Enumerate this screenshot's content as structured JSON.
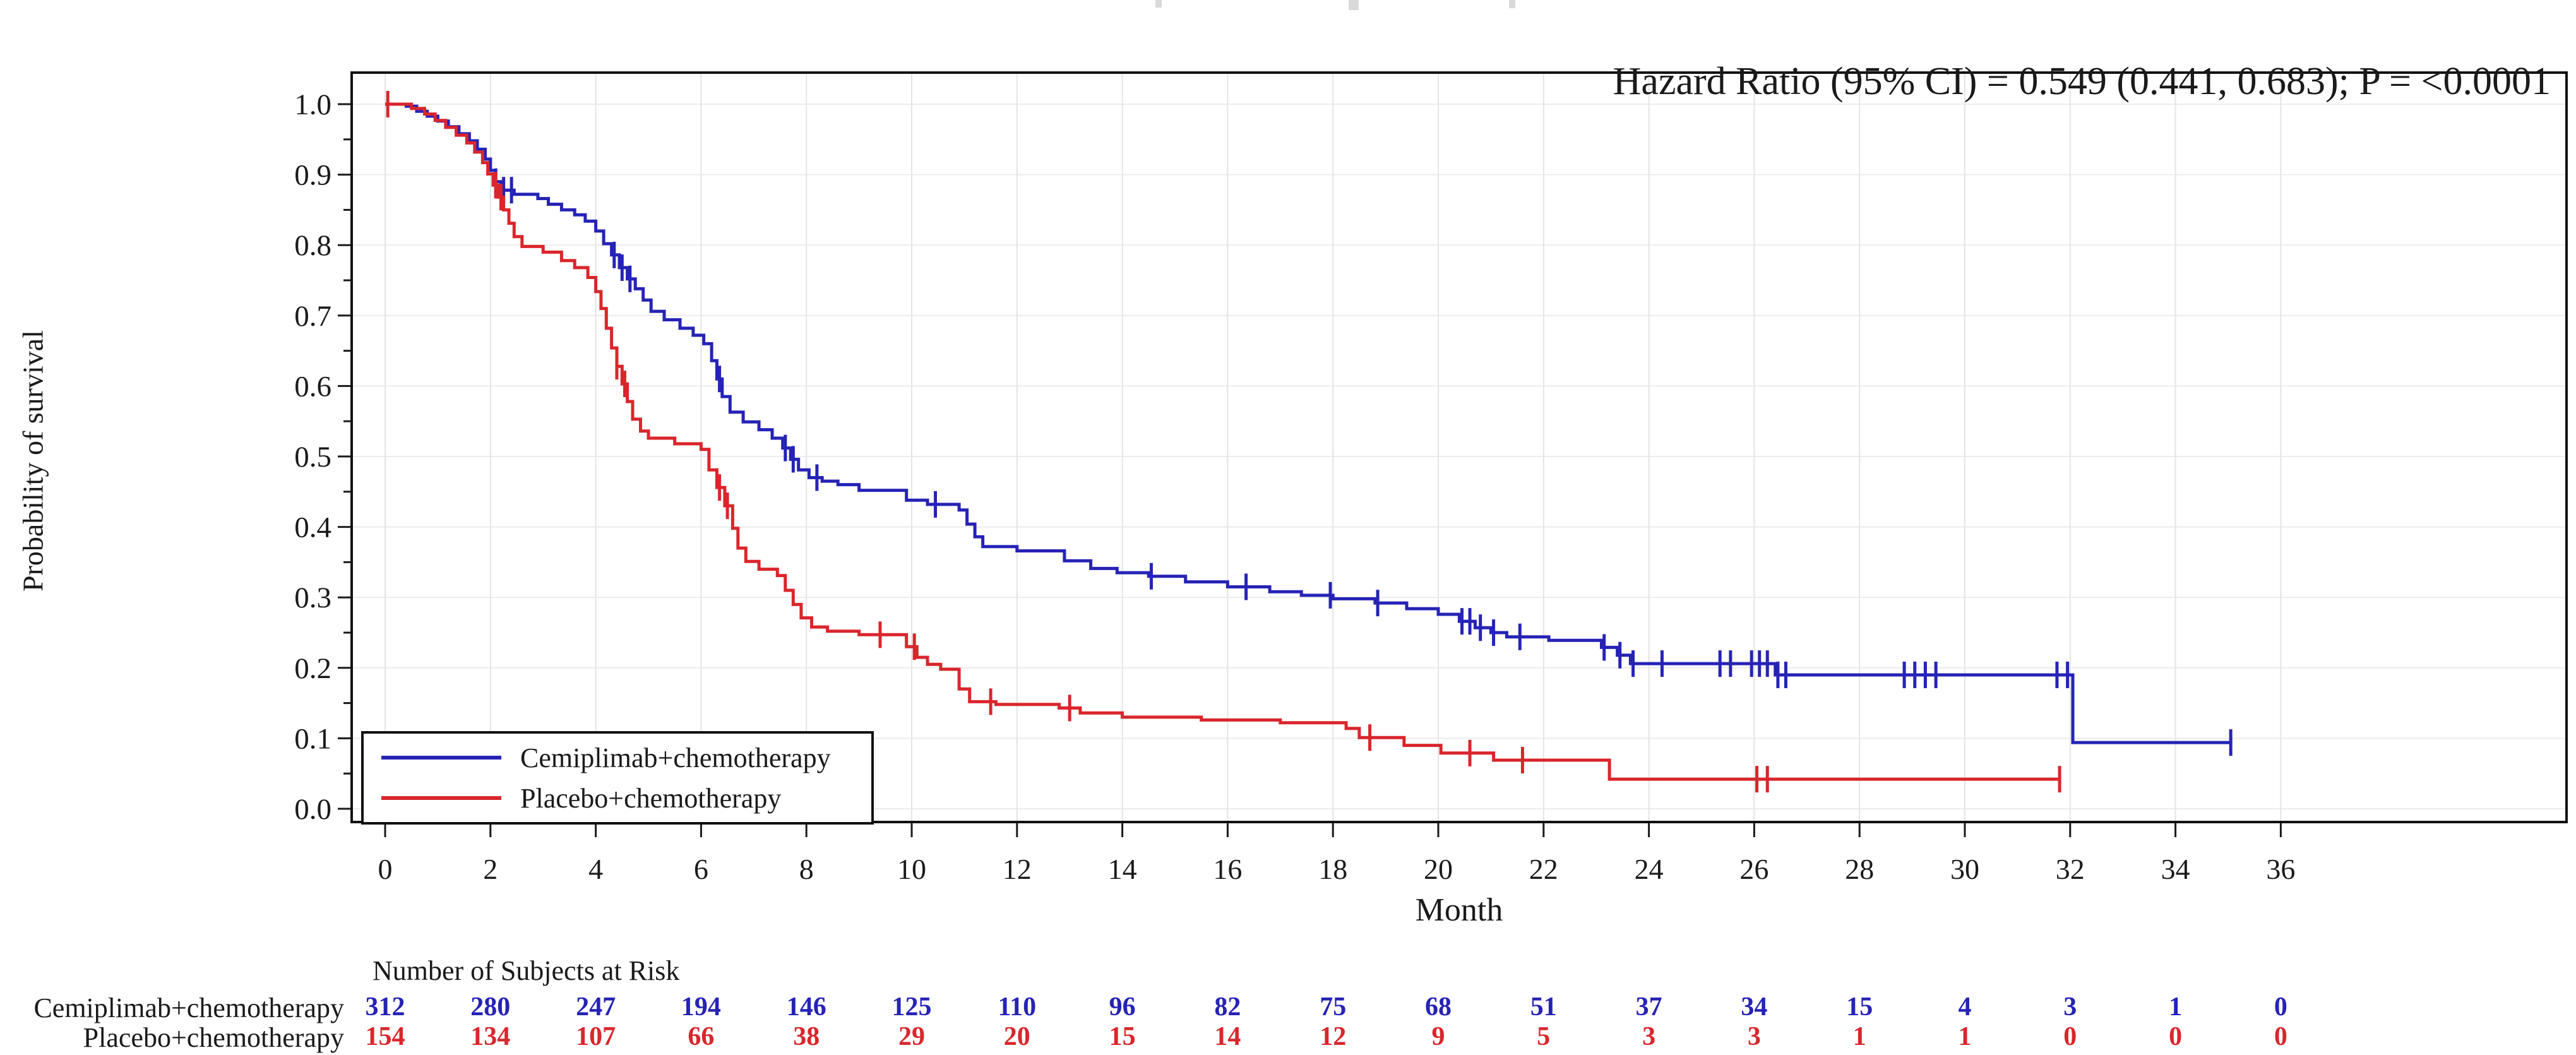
{
  "annotation": {
    "hazard_ratio": "Hazard Ratio (95% CI) = 0.549 (0.441, 0.683); P = <0.0001"
  },
  "axes": {
    "x": {
      "title": "Month",
      "ticks": [
        0,
        2,
        4,
        6,
        8,
        10,
        12,
        14,
        16,
        18,
        20,
        22,
        24,
        26,
        28,
        30,
        32,
        34,
        36
      ],
      "min": 0,
      "max": 36
    },
    "y": {
      "title": "Probability of survival",
      "ticks": [
        "0.0",
        "0.1",
        "0.2",
        "0.3",
        "0.4",
        "0.5",
        "0.6",
        "0.7",
        "0.8",
        "0.9",
        "1.0"
      ],
      "min": 0.0,
      "max": 1.0
    }
  },
  "legend": {
    "items": [
      {
        "label": "Cemiplimab+chemotherapy",
        "color": "#2623b6"
      },
      {
        "label": "Placebo+chemotherapy",
        "color": "#d9262c"
      }
    ]
  },
  "chart_data": {
    "type": "line",
    "subtype": "kaplan-meier-step",
    "title": "",
    "xlabel": "Month",
    "ylabel": "Probability of survival",
    "xlim": [
      0,
      36
    ],
    "ylim": [
      0.0,
      1.0
    ],
    "x_tick_step": 2,
    "y_tick_step": 0.1,
    "grid": true,
    "legend_position": "bottom-left-inside",
    "annotation": "Hazard Ratio (95% CI) = 0.549 (0.441, 0.683); P = <0.0001",
    "series": [
      {
        "name": "Cemiplimab+chemotherapy",
        "color": "#2623b6",
        "end_month": 35.05,
        "steps": [
          [
            0,
            1.0
          ],
          [
            0.4,
            0.997
          ],
          [
            0.6,
            0.99
          ],
          [
            0.8,
            0.983
          ],
          [
            1.0,
            0.976
          ],
          [
            1.2,
            0.968
          ],
          [
            1.4,
            0.958
          ],
          [
            1.6,
            0.948
          ],
          [
            1.75,
            0.936
          ],
          [
            1.9,
            0.922
          ],
          [
            2.0,
            0.906
          ],
          [
            2.1,
            0.89
          ],
          [
            2.2,
            0.878
          ],
          [
            2.45,
            0.872
          ],
          [
            2.9,
            0.866
          ],
          [
            3.1,
            0.858
          ],
          [
            3.35,
            0.85
          ],
          [
            3.6,
            0.843
          ],
          [
            3.8,
            0.834
          ],
          [
            4.0,
            0.82
          ],
          [
            4.15,
            0.802
          ],
          [
            4.3,
            0.786
          ],
          [
            4.45,
            0.768
          ],
          [
            4.6,
            0.752
          ],
          [
            4.75,
            0.738
          ],
          [
            4.9,
            0.722
          ],
          [
            5.05,
            0.706
          ],
          [
            5.3,
            0.694
          ],
          [
            5.6,
            0.682
          ],
          [
            5.85,
            0.672
          ],
          [
            6.05,
            0.66
          ],
          [
            6.2,
            0.636
          ],
          [
            6.3,
            0.61
          ],
          [
            6.4,
            0.585
          ],
          [
            6.55,
            0.563
          ],
          [
            6.8,
            0.549
          ],
          [
            7.1,
            0.538
          ],
          [
            7.35,
            0.526
          ],
          [
            7.55,
            0.512
          ],
          [
            7.7,
            0.496
          ],
          [
            7.85,
            0.481
          ],
          [
            8.05,
            0.47
          ],
          [
            8.3,
            0.465
          ],
          [
            8.6,
            0.46
          ],
          [
            9.0,
            0.452
          ],
          [
            9.9,
            0.438
          ],
          [
            10.3,
            0.432
          ],
          [
            10.9,
            0.424
          ],
          [
            11.05,
            0.404
          ],
          [
            11.2,
            0.386
          ],
          [
            11.35,
            0.372
          ],
          [
            12.0,
            0.366
          ],
          [
            12.9,
            0.352
          ],
          [
            13.4,
            0.341
          ],
          [
            13.9,
            0.335
          ],
          [
            14.5,
            0.33
          ],
          [
            15.2,
            0.322
          ],
          [
            16.0,
            0.315
          ],
          [
            16.8,
            0.308
          ],
          [
            17.4,
            0.303
          ],
          [
            18.0,
            0.298
          ],
          [
            18.8,
            0.292
          ],
          [
            19.4,
            0.284
          ],
          [
            20.0,
            0.276
          ],
          [
            20.4,
            0.266
          ],
          [
            20.7,
            0.257
          ],
          [
            21.0,
            0.25
          ],
          [
            21.3,
            0.244
          ],
          [
            22.1,
            0.239
          ],
          [
            23.1,
            0.229
          ],
          [
            23.4,
            0.218
          ],
          [
            23.65,
            0.206
          ],
          [
            26.4,
            0.19
          ],
          [
            32.05,
            0.094
          ]
        ],
        "censor_months": [
          2.1,
          2.25,
          2.4,
          4.35,
          4.5,
          4.65,
          6.35,
          7.6,
          7.75,
          8.2,
          10.45,
          14.55,
          16.35,
          17.95,
          18.85,
          20.45,
          20.6,
          20.8,
          21.05,
          21.55,
          23.15,
          23.45,
          23.7,
          24.25,
          25.35,
          25.55,
          25.95,
          26.1,
          26.25,
          26.45,
          26.6,
          28.85,
          29.05,
          29.25,
          29.45,
          31.75,
          31.95,
          35.05
        ]
      },
      {
        "name": "Placebo+chemotherapy",
        "color": "#d9262c",
        "end_month": 31.8,
        "steps": [
          [
            0,
            1.0
          ],
          [
            0.5,
            0.994
          ],
          [
            0.75,
            0.986
          ],
          [
            0.95,
            0.977
          ],
          [
            1.15,
            0.967
          ],
          [
            1.35,
            0.956
          ],
          [
            1.55,
            0.945
          ],
          [
            1.7,
            0.932
          ],
          [
            1.85,
            0.917
          ],
          [
            1.95,
            0.901
          ],
          [
            2.05,
            0.885
          ],
          [
            2.15,
            0.868
          ],
          [
            2.25,
            0.85
          ],
          [
            2.35,
            0.831
          ],
          [
            2.45,
            0.812
          ],
          [
            2.6,
            0.798
          ],
          [
            3.0,
            0.79
          ],
          [
            3.35,
            0.778
          ],
          [
            3.6,
            0.768
          ],
          [
            3.85,
            0.754
          ],
          [
            4.0,
            0.734
          ],
          [
            4.1,
            0.71
          ],
          [
            4.2,
            0.682
          ],
          [
            4.3,
            0.654
          ],
          [
            4.4,
            0.628
          ],
          [
            4.5,
            0.603
          ],
          [
            4.6,
            0.578
          ],
          [
            4.7,
            0.553
          ],
          [
            4.85,
            0.536
          ],
          [
            5.0,
            0.526
          ],
          [
            5.5,
            0.518
          ],
          [
            6.0,
            0.51
          ],
          [
            6.15,
            0.481
          ],
          [
            6.3,
            0.456
          ],
          [
            6.45,
            0.43
          ],
          [
            6.6,
            0.398
          ],
          [
            6.7,
            0.37
          ],
          [
            6.85,
            0.351
          ],
          [
            7.1,
            0.34
          ],
          [
            7.45,
            0.331
          ],
          [
            7.6,
            0.31
          ],
          [
            7.75,
            0.29
          ],
          [
            7.9,
            0.271
          ],
          [
            8.1,
            0.258
          ],
          [
            8.4,
            0.252
          ],
          [
            9.0,
            0.247
          ],
          [
            9.9,
            0.23
          ],
          [
            10.1,
            0.215
          ],
          [
            10.3,
            0.205
          ],
          [
            10.55,
            0.198
          ],
          [
            10.9,
            0.17
          ],
          [
            11.1,
            0.152
          ],
          [
            11.6,
            0.148
          ],
          [
            12.8,
            0.143
          ],
          [
            13.2,
            0.136
          ],
          [
            14.0,
            0.13
          ],
          [
            15.5,
            0.126
          ],
          [
            17.0,
            0.122
          ],
          [
            18.25,
            0.114
          ],
          [
            18.5,
            0.101
          ],
          [
            19.35,
            0.09
          ],
          [
            20.05,
            0.079
          ],
          [
            21.05,
            0.069
          ],
          [
            23.25,
            0.042
          ]
        ],
        "censor_months": [
          0.05,
          2.1,
          2.2,
          4.4,
          4.55,
          6.35,
          6.5,
          9.4,
          10.05,
          11.5,
          13.0,
          18.7,
          20.6,
          21.6,
          26.05,
          26.25,
          31.8
        ]
      }
    ]
  },
  "at_risk": {
    "header": "Number of Subjects at Risk",
    "months": [
      0,
      2,
      4,
      6,
      8,
      10,
      12,
      14,
      16,
      18,
      20,
      22,
      24,
      26,
      28,
      30,
      32,
      34,
      36
    ],
    "rows": [
      {
        "label": "Cemiplimab+chemotherapy",
        "color": "#2623b6",
        "values": [
          312,
          280,
          247,
          194,
          146,
          125,
          110,
          96,
          82,
          75,
          68,
          51,
          37,
          34,
          15,
          4,
          3,
          1,
          0
        ]
      },
      {
        "label": "Placebo+chemotherapy",
        "color": "#d9262c",
        "values": [
          154,
          134,
          107,
          66,
          38,
          29,
          20,
          15,
          14,
          12,
          9,
          5,
          3,
          3,
          1,
          1,
          0,
          0,
          0
        ]
      }
    ]
  }
}
